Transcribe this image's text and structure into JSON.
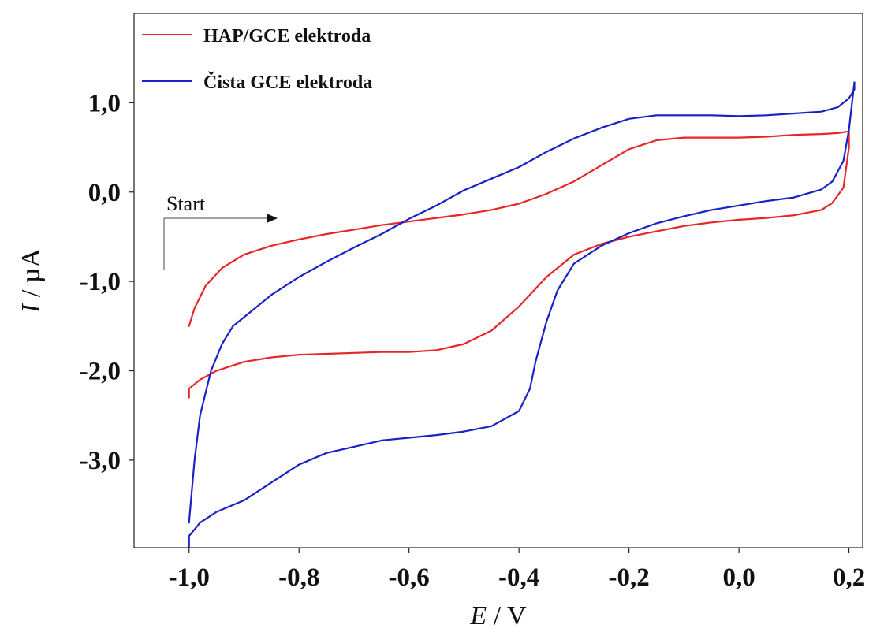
{
  "chart_data": {
    "type": "line",
    "xlabel_var": "E",
    "xlabel_unit": " / V",
    "ylabel_var": "I",
    "ylabel_unit": " / µA",
    "xlim": [
      -1.1,
      0.225
    ],
    "ylim": [
      -3.98,
      2.0
    ],
    "x_ticks": [
      -1.0,
      -0.8,
      -0.6,
      -0.4,
      -0.2,
      0.0,
      0.2
    ],
    "x_tick_labels": [
      "-1,0",
      "-0,8",
      "-0,6",
      "-0,4",
      "-0,2",
      "0,0",
      "0,2"
    ],
    "y_ticks": [
      1.0,
      0.0,
      -1.0,
      -2.0,
      -3.0
    ],
    "y_tick_labels": [
      "1,0",
      "0,0",
      "-1,0",
      "-2,0",
      "-3,0"
    ],
    "grid": false,
    "legend_position": "top-left",
    "series": [
      {
        "name": "HAP/GCE elektroda",
        "color": "#e8262a",
        "x": [
          -1.0,
          -0.99,
          -0.97,
          -0.94,
          -0.9,
          -0.85,
          -0.8,
          -0.75,
          -0.7,
          -0.65,
          -0.6,
          -0.55,
          -0.5,
          -0.45,
          -0.4,
          -0.35,
          -0.3,
          -0.25,
          -0.2,
          -0.15,
          -0.1,
          -0.05,
          0.0,
          0.05,
          0.1,
          0.15,
          0.18,
          0.2,
          0.2,
          0.19,
          0.17,
          0.15,
          0.1,
          0.05,
          0.0,
          -0.05,
          -0.1,
          -0.15,
          -0.2,
          -0.25,
          -0.3,
          -0.35,
          -0.4,
          -0.45,
          -0.5,
          -0.55,
          -0.6,
          -0.65,
          -0.7,
          -0.75,
          -0.8,
          -0.85,
          -0.9,
          -0.95,
          -0.98,
          -1.0,
          -1.0
        ],
        "y": [
          -1.5,
          -1.3,
          -1.05,
          -0.85,
          -0.7,
          -0.6,
          -0.53,
          -0.47,
          -0.42,
          -0.37,
          -0.33,
          -0.29,
          -0.25,
          -0.2,
          -0.13,
          -0.02,
          0.12,
          0.3,
          0.48,
          0.58,
          0.61,
          0.61,
          0.61,
          0.62,
          0.64,
          0.65,
          0.66,
          0.68,
          0.5,
          0.05,
          -0.12,
          -0.2,
          -0.26,
          -0.29,
          -0.31,
          -0.34,
          -0.38,
          -0.44,
          -0.5,
          -0.58,
          -0.7,
          -0.95,
          -1.28,
          -1.55,
          -1.7,
          -1.77,
          -1.79,
          -1.79,
          -1.8,
          -1.81,
          -1.82,
          -1.85,
          -1.9,
          -2.0,
          -2.1,
          -2.2,
          -2.3
        ]
      },
      {
        "name": "Čista GCE elektroda",
        "color": "#1a21c6",
        "x": [
          -1.0,
          -0.99,
          -0.98,
          -0.96,
          -0.94,
          -0.92,
          -0.9,
          -0.85,
          -0.8,
          -0.75,
          -0.7,
          -0.65,
          -0.6,
          -0.55,
          -0.5,
          -0.45,
          -0.4,
          -0.35,
          -0.3,
          -0.25,
          -0.2,
          -0.15,
          -0.1,
          -0.05,
          0.0,
          0.05,
          0.1,
          0.15,
          0.18,
          0.2,
          0.21,
          0.21,
          0.2,
          0.19,
          0.17,
          0.15,
          0.1,
          0.05,
          0.0,
          -0.05,
          -0.1,
          -0.15,
          -0.2,
          -0.25,
          -0.3,
          -0.33,
          -0.35,
          -0.37,
          -0.38,
          -0.4,
          -0.45,
          -0.5,
          -0.55,
          -0.6,
          -0.65,
          -0.7,
          -0.75,
          -0.8,
          -0.85,
          -0.9,
          -0.95,
          -0.98,
          -1.0,
          -1.0
        ],
        "y": [
          -3.7,
          -3.0,
          -2.5,
          -2.0,
          -1.7,
          -1.5,
          -1.4,
          -1.15,
          -0.95,
          -0.78,
          -0.62,
          -0.47,
          -0.3,
          -0.15,
          0.02,
          0.15,
          0.28,
          0.45,
          0.6,
          0.72,
          0.82,
          0.86,
          0.86,
          0.86,
          0.85,
          0.86,
          0.88,
          0.9,
          0.95,
          1.05,
          1.15,
          1.23,
          0.7,
          0.35,
          0.12,
          0.03,
          -0.06,
          -0.1,
          -0.15,
          -0.2,
          -0.27,
          -0.35,
          -0.46,
          -0.6,
          -0.8,
          -1.1,
          -1.45,
          -1.9,
          -2.2,
          -2.45,
          -2.62,
          -2.68,
          -2.72,
          -2.75,
          -2.78,
          -2.85,
          -2.92,
          -3.05,
          -3.25,
          -3.45,
          -3.58,
          -3.7,
          -3.85,
          -3.98
        ]
      }
    ],
    "annotation": {
      "text": "Start"
    }
  }
}
